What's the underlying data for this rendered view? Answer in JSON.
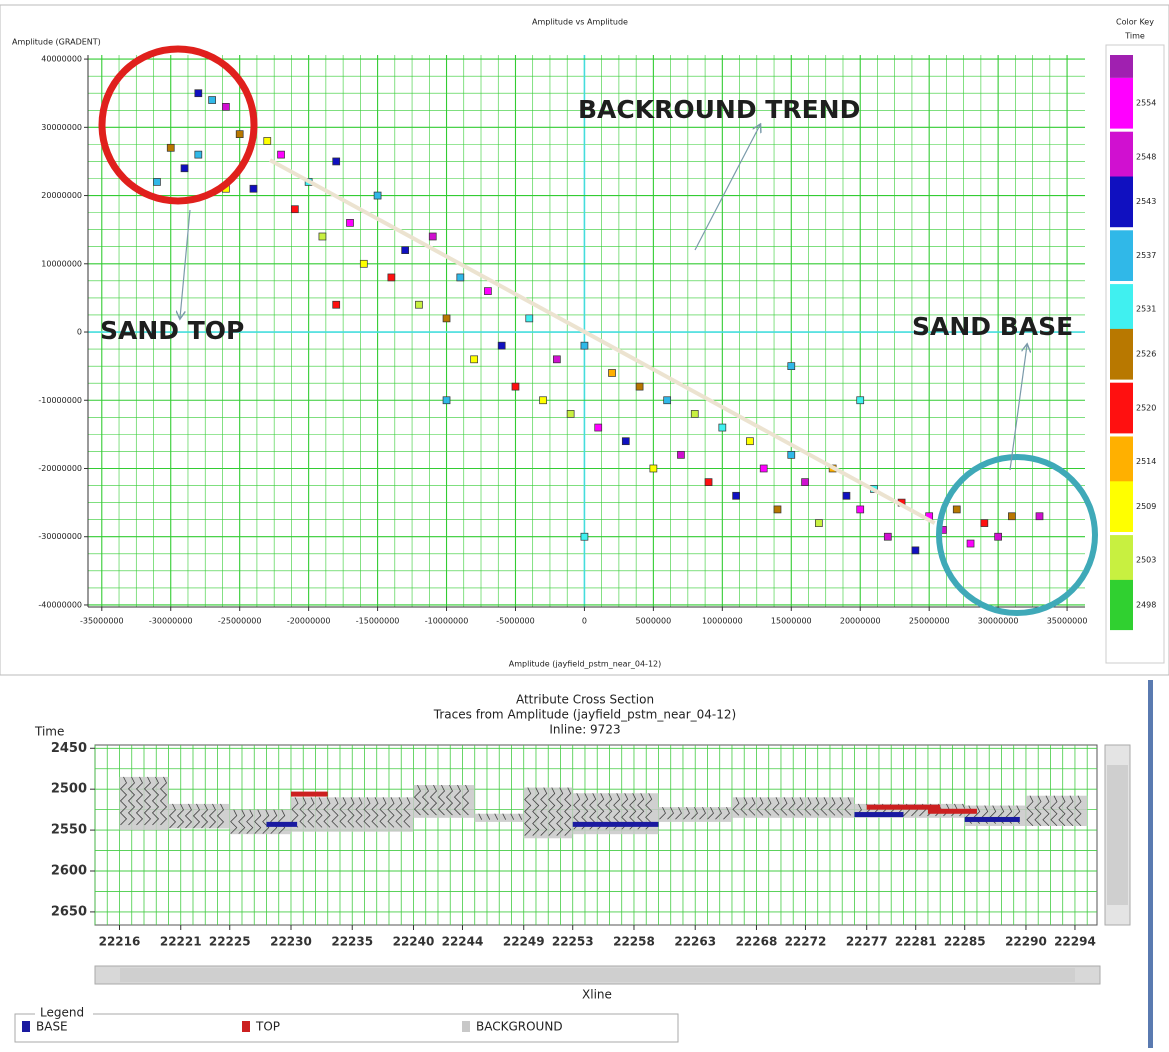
{
  "chart_data": [
    {
      "type": "scatter",
      "title": "Amplitude vs Amplitude",
      "y_label": "Amplitude (GRADENT)",
      "x_label": "Amplitude (jayfield_pstm_near_04-12)",
      "xlim": [
        -36000000,
        36300000
      ],
      "ylim": [
        -40300000,
        40600000
      ],
      "xticks": [
        -35000000,
        -30000000,
        -25000000,
        -20000000,
        -15000000,
        -10000000,
        -5000000,
        0,
        5000000,
        10000000,
        15000000,
        20000000,
        25000000,
        30000000,
        35000000
      ],
      "yticks": [
        -40000000,
        -30000000,
        -20000000,
        -10000000,
        0,
        10000000,
        20000000,
        30000000,
        40000000
      ],
      "grid": true,
      "grid_color": "#33cc33",
      "zero_line_color": "#44dddd",
      "marker": "square",
      "x": [
        -31000000,
        -30000000,
        -29000000,
        -28000000,
        -27000000,
        -26000000,
        -25000000,
        -24000000,
        -23000000,
        -22000000,
        -21000000,
        -20000000,
        -19000000,
        -18000000,
        -17000000,
        -16000000,
        -15000000,
        -14000000,
        -13000000,
        -12000000,
        -11000000,
        -10000000,
        -9000000,
        -8000000,
        -7000000,
        -6000000,
        -5000000,
        -4000000,
        -3000000,
        -2000000,
        -1000000,
        0,
        0,
        1000000,
        2000000,
        3000000,
        4000000,
        5000000,
        6000000,
        7000000,
        8000000,
        9000000,
        10000000,
        11000000,
        12000000,
        13000000,
        14000000,
        15000000,
        16000000,
        17000000,
        18000000,
        19000000,
        20000000,
        21000000,
        22000000,
        23000000,
        24000000,
        25000000,
        26000000,
        27000000,
        28000000,
        29000000,
        30000000,
        31000000,
        33000000,
        -28000000,
        -26000000,
        -18000000,
        -10000000,
        20000000,
        15000000
      ],
      "values": [
        22000000,
        27000000,
        24000000,
        26000000,
        34000000,
        33000000,
        29000000,
        21000000,
        28000000,
        26000000,
        18000000,
        22000000,
        14000000,
        25000000,
        16000000,
        10000000,
        20000000,
        8000000,
        12000000,
        4000000,
        14000000,
        2000000,
        8000000,
        -4000000,
        6000000,
        -2000000,
        -8000000,
        2000000,
        -10000000,
        -4000000,
        -12000000,
        -2000000,
        -30000000,
        -14000000,
        -6000000,
        -16000000,
        -8000000,
        -20000000,
        -10000000,
        -18000000,
        -12000000,
        -22000000,
        -14000000,
        -24000000,
        -16000000,
        -20000000,
        -26000000,
        -18000000,
        -22000000,
        -28000000,
        -20000000,
        -24000000,
        -26000000,
        -23000000,
        -30000000,
        -25000000,
        -32000000,
        -27000000,
        -29000000,
        -26000000,
        -31000000,
        -28000000,
        -30000000,
        -27000000,
        -27000000,
        35000000,
        21000000,
        4000000,
        -10000000,
        -10000000,
        -5000000
      ],
      "time": [
        2537,
        2526,
        2543,
        2537,
        2537,
        2548,
        2526,
        2543,
        2509,
        2554,
        2520,
        2531,
        2503,
        2543,
        2554,
        2509,
        2537,
        2520,
        2543,
        2503,
        2548,
        2526,
        2537,
        2509,
        2554,
        2543,
        2520,
        2531,
        2509,
        2548,
        2503,
        2537,
        2531,
        2554,
        2514,
        2543,
        2526,
        2509,
        2537,
        2548,
        2503,
        2520,
        2531,
        2543,
        2509,
        2554,
        2526,
        2537,
        2548,
        2503,
        2514,
        2543,
        2554,
        2531,
        2548,
        2520,
        2543,
        2554,
        2548,
        2526,
        2554,
        2520,
        2548,
        2526,
        2548,
        2543,
        2509,
        2520,
        2537,
        2531,
        2537
      ],
      "color_key": {
        "title": "Color Key",
        "subtitle": "Time",
        "ticks": [
          2554,
          2548,
          2543,
          2537,
          2531,
          2526,
          2520,
          2514,
          2509,
          2503,
          2498
        ],
        "colors": [
          "#ff00ff",
          "#d010d0",
          "#1010c0",
          "#30b8e8",
          "#40f0f0",
          "#b87800",
          "#ff1010",
          "#ffb000",
          "#ffff00",
          "#c8f040",
          "#30d030"
        ]
      },
      "trend_line": {
        "x": [
          -22800000,
          25400000
        ],
        "y": [
          25200000,
          -28000000
        ]
      },
      "annotations": [
        {
          "text": "SAND TOP"
        },
        {
          "text": "BACKROUND TREND"
        },
        {
          "text": "SAND BASE"
        }
      ]
    },
    {
      "type": "cross_section",
      "title_lines": [
        "Attribute Cross Section",
        "Traces from Amplitude (jayfield_pstm_near_04-12)",
        "Inline: 9723"
      ],
      "y_label": "Time",
      "x_label": "Xline",
      "y_inverted": true,
      "xlim": [
        22214,
        22295.8
      ],
      "ylim": [
        2446,
        2666
      ],
      "xticks": [
        22216,
        22221,
        22225,
        22230,
        22235,
        22240,
        22244,
        22249,
        22253,
        22258,
        22263,
        22268,
        22272,
        22277,
        22281,
        22285,
        22290,
        22294
      ],
      "yticks": [
        2450,
        2500,
        2550,
        2600,
        2650
      ],
      "grid": true,
      "legend_title": "Legend",
      "series": [
        {
          "name": "BASE",
          "color": "#1a1aa0",
          "x": [
            22228,
            22253,
            22276,
            22285
          ],
          "x_end": [
            22230.5,
            22260,
            22280,
            22289.5
          ],
          "values": [
            2543,
            2543,
            2531,
            2537
          ]
        },
        {
          "name": "TOP",
          "color": "#cc2020",
          "x": [
            22230,
            22277,
            22282
          ],
          "x_end": [
            22233,
            22283,
            22286
          ],
          "values": [
            2506,
            2522,
            2527
          ]
        },
        {
          "name": "BACKGROUND",
          "color": "#c8c8c8",
          "x": [
            22216,
            22220,
            22225,
            22230,
            22240,
            22245,
            22249,
            22253,
            22260,
            22266,
            22276,
            22285,
            22290
          ],
          "x_end": [
            22220,
            22225,
            22230,
            22240,
            22245,
            22249,
            22253,
            22260,
            22266,
            22276,
            22285,
            22290,
            22295
          ],
          "values": [
            2485,
            2518,
            2525,
            2510,
            2495,
            2530,
            2498,
            2505,
            2522,
            2510,
            2518,
            2520,
            2508
          ],
          "values_bottom": [
            2550,
            2548,
            2555,
            2552,
            2535,
            2540,
            2560,
            2555,
            2540,
            2535,
            2535,
            2545,
            2545
          ]
        }
      ]
    }
  ]
}
